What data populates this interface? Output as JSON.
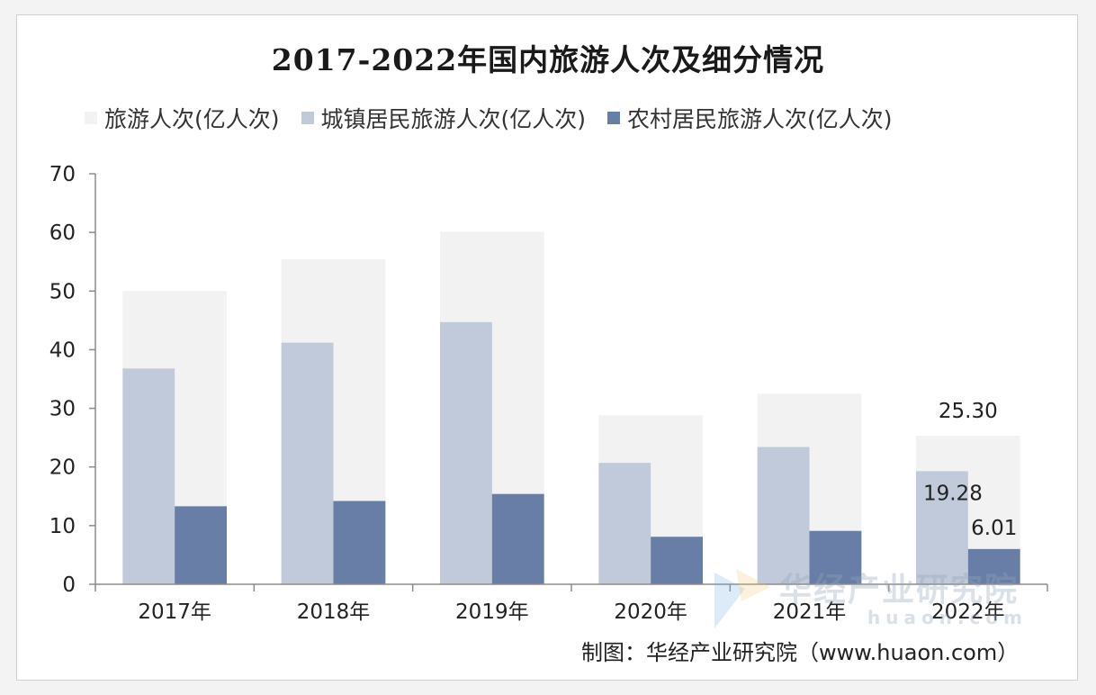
{
  "colors": {
    "total": "#f2f2f2",
    "urban": "#c0cadb",
    "rural": "#687ea6"
  },
  "credit": "制图：华经产业研究院（www.huaon.com）",
  "watermark": {
    "text": "华经产业研究院",
    "url": "huaon.com"
  },
  "chart_data": {
    "type": "bar",
    "title": "2017-2022年国内旅游人次及细分情况",
    "categories": [
      "2017年",
      "2018年",
      "2019年",
      "2020年",
      "2021年",
      "2022年"
    ],
    "series": [
      {
        "name": "旅游人次(亿人次)",
        "values": [
          50.0,
          55.4,
          60.1,
          28.8,
          32.5,
          25.3
        ]
      },
      {
        "name": "城镇居民旅游人次(亿人次)",
        "values": [
          36.8,
          41.2,
          44.7,
          20.7,
          23.4,
          19.28
        ]
      },
      {
        "name": "农村居民旅游人次(亿人次)",
        "values": [
          13.3,
          14.2,
          15.4,
          8.1,
          9.1,
          6.01
        ]
      }
    ],
    "data_labels": [
      {
        "series": 0,
        "category": 5,
        "text": "25.30"
      },
      {
        "series": 1,
        "category": 5,
        "text": "19.28"
      },
      {
        "series": 2,
        "category": 5,
        "text": "6.01"
      }
    ],
    "y_ticks": [
      "0",
      "10",
      "20",
      "30",
      "40",
      "50",
      "60",
      "70"
    ],
    "ylim": [
      0,
      70
    ],
    "legend": "top",
    "grid": false
  }
}
